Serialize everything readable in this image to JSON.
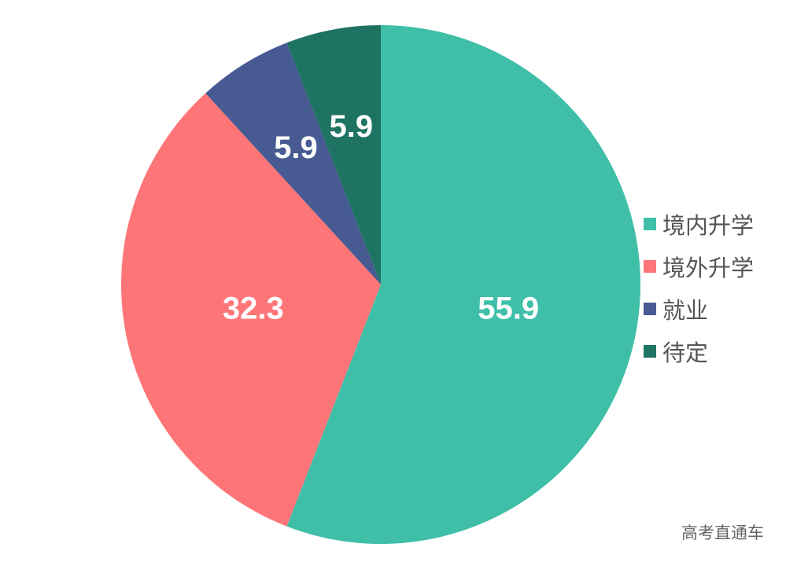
{
  "chart_data": {
    "type": "pie",
    "title": "",
    "categories": [
      "境内升学",
      "境外升学",
      "就业",
      "待定"
    ],
    "values": [
      55.9,
      32.3,
      5.9,
      5.9
    ],
    "colors": [
      "#3fbfa7",
      "#fe7578",
      "#475a92",
      "#1f7363"
    ],
    "data_labels": [
      "55.9",
      "32.3",
      "5.9",
      "5.9"
    ],
    "start_angle": "12 o'clock",
    "direction": "clockwise",
    "legend_placement": "right"
  },
  "watermark": "高考直通车"
}
